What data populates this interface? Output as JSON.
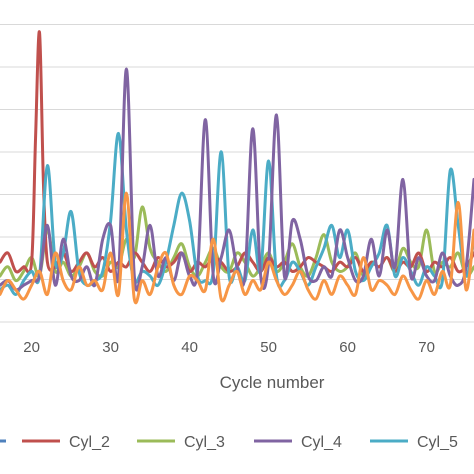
{
  "chart_data": {
    "type": "line",
    "xlabel": "Cycle number",
    "ylabel": "",
    "xlim": [
      16,
      76
    ],
    "x_ticks": [
      20,
      30,
      40,
      50,
      60,
      70
    ],
    "ylim": [
      0,
      7
    ],
    "grid": true,
    "legend_position": "bottom",
    "series": [
      {
        "name": "Cyl_2",
        "color": "#c0504d",
        "x": [
          16,
          17,
          18,
          19,
          20,
          20.5,
          21,
          21.5,
          22,
          23,
          24,
          25,
          26,
          27,
          28,
          29,
          30,
          31,
          32,
          33,
          34,
          35,
          36,
          37,
          38,
          39,
          40,
          41,
          42,
          43,
          44,
          45,
          46,
          47,
          48,
          49,
          50,
          51,
          52,
          53,
          54,
          55,
          56,
          57,
          58,
          59,
          60,
          61,
          62,
          63,
          64,
          65,
          66,
          67,
          68,
          69,
          70,
          71,
          72,
          73,
          74,
          75,
          76
        ],
        "y": [
          1.3,
          1.5,
          1.1,
          1.2,
          1.3,
          4.0,
          6.3,
          3.0,
          1.3,
          1.2,
          1.5,
          1.1,
          1.3,
          1.5,
          1.2,
          1.4,
          1.1,
          1.3,
          1.2,
          1.5,
          1.3,
          1.1,
          1.4,
          1.2,
          1.3,
          1.5,
          1.1,
          1.3,
          1.2,
          1.4,
          1.3,
          1.1,
          1.2,
          1.5,
          1.3,
          1.1,
          1.4,
          1.2,
          1.3,
          1.1,
          1.2,
          1.4,
          1.3,
          1.2,
          1.1,
          1.3,
          1.2,
          1.4,
          1.1,
          1.3,
          1.2,
          1.4,
          1.1,
          1.3,
          1.2,
          1.5,
          1.1,
          1.3,
          1.2,
          1.4,
          1.1,
          1.2,
          1.5
        ]
      },
      {
        "name": "Cyl_3",
        "color": "#9bbb59",
        "x": [
          16,
          17,
          18,
          19,
          20,
          21,
          22,
          23,
          24,
          25,
          26,
          27,
          28,
          29,
          30,
          31,
          32,
          33,
          34,
          35,
          36,
          37,
          38,
          39,
          40,
          41,
          42,
          43,
          44,
          45,
          46,
          47,
          48,
          49,
          50,
          51,
          52,
          53,
          54,
          55,
          56,
          57,
          58,
          59,
          60,
          61,
          62,
          63,
          64,
          65,
          66,
          67,
          68,
          69,
          70,
          71,
          72,
          73,
          74,
          75,
          76
        ],
        "y": [
          1.0,
          1.2,
          0.9,
          1.1,
          1.4,
          1.0,
          2.0,
          1.1,
          1.3,
          1.0,
          1.2,
          1.5,
          1.1,
          1.0,
          1.3,
          1.2,
          1.8,
          1.4,
          2.5,
          1.6,
          1.3,
          1.1,
          1.4,
          1.7,
          1.2,
          1.0,
          1.3,
          1.6,
          1.2,
          1.1,
          1.5,
          1.3,
          1.0,
          1.2,
          1.5,
          1.1,
          1.3,
          1.7,
          1.2,
          1.0,
          1.4,
          1.9,
          1.3,
          1.1,
          1.2,
          1.5,
          1.0,
          1.3,
          1.2,
          1.4,
          1.1,
          1.6,
          1.3,
          1.2,
          2.0,
          1.1,
          1.3,
          1.2,
          1.5,
          1.0,
          1.2
        ]
      },
      {
        "name": "Cyl_4",
        "color": "#8064a2",
        "x": [
          16,
          17,
          18,
          19,
          20,
          21,
          22,
          23,
          24,
          25,
          26,
          27,
          28,
          29,
          30,
          31,
          32,
          33,
          34,
          35,
          36,
          37,
          38,
          39,
          40,
          41,
          42,
          43,
          44,
          45,
          46,
          47,
          48,
          49,
          50,
          51,
          52,
          53,
          54,
          55,
          56,
          57,
          58,
          59,
          60,
          61,
          62,
          63,
          64,
          65,
          66,
          67,
          68,
          69,
          70,
          71,
          72,
          73,
          74,
          75,
          76
        ],
        "y": [
          0.8,
          0.9,
          0.7,
          0.8,
          0.9,
          1.0,
          2.1,
          0.8,
          1.8,
          1.0,
          0.9,
          1.2,
          0.8,
          1.8,
          2.1,
          1.0,
          5.5,
          1.0,
          1.2,
          2.1,
          1.0,
          1.4,
          0.9,
          1.5,
          1.0,
          1.1,
          4.4,
          1.0,
          1.4,
          2.0,
          1.2,
          1.0,
          4.2,
          1.0,
          1.3,
          4.5,
          1.0,
          2.2,
          1.8,
          1.0,
          0.9,
          1.2,
          1.0,
          2.0,
          1.4,
          0.9,
          1.0,
          1.8,
          1.0,
          2.0,
          1.2,
          3.1,
          1.0,
          1.4,
          1.0,
          0.9,
          1.5,
          1.0,
          0.8,
          1.2,
          3.1
        ]
      },
      {
        "name": "Cyl_5",
        "color": "#4bacc6",
        "x": [
          16,
          17,
          18,
          19,
          20,
          21,
          22,
          23,
          24,
          25,
          26,
          27,
          28,
          29,
          30,
          31,
          32,
          33,
          34,
          35,
          36,
          37,
          38,
          39,
          40,
          41,
          42,
          43,
          44,
          45,
          46,
          47,
          48,
          49,
          50,
          51,
          52,
          53,
          54,
          55,
          56,
          57,
          58,
          59,
          60,
          61,
          62,
          63,
          64,
          65,
          66,
          67,
          68,
          69,
          70,
          71,
          72,
          73,
          74,
          75,
          76
        ],
        "y": [
          0.7,
          0.8,
          0.6,
          0.9,
          1.1,
          1.0,
          3.4,
          1.3,
          1.5,
          2.4,
          1.1,
          0.8,
          0.9,
          1.1,
          2.2,
          4.1,
          2.0,
          0.9,
          1.1,
          1.0,
          0.8,
          1.3,
          2.1,
          2.8,
          2.2,
          1.0,
          0.9,
          1.1,
          3.7,
          1.0,
          1.2,
          0.9,
          2.0,
          1.1,
          3.5,
          1.0,
          0.9,
          1.3,
          1.1,
          0.8,
          1.2,
          1.6,
          2.1,
          1.4,
          2.0,
          1.1,
          0.9,
          1.2,
          1.5,
          2.1,
          1.0,
          1.4,
          1.1,
          0.8,
          1.2,
          1.0,
          0.9,
          3.3,
          2.1,
          1.0,
          1.8
        ]
      },
      {
        "name": "",
        "color": "#f79646",
        "x": [
          16,
          17,
          18,
          19,
          20,
          21,
          22,
          23,
          24,
          25,
          26,
          27,
          28,
          29,
          30,
          31,
          32,
          33,
          34,
          35,
          36,
          37,
          38,
          39,
          40,
          41,
          42,
          43,
          44,
          45,
          46,
          47,
          48,
          49,
          50,
          51,
          52,
          53,
          54,
          55,
          56,
          57,
          58,
          59,
          60,
          61,
          62,
          63,
          64,
          65,
          66,
          67,
          68,
          69,
          70,
          71,
          72,
          73,
          74,
          75,
          76
        ],
        "y": [
          0.6,
          0.9,
          0.7,
          0.5,
          0.8,
          1.1,
          0.6,
          1.5,
          0.9,
          0.7,
          1.2,
          0.8,
          0.9,
          0.7,
          1.5,
          0.6,
          2.8,
          0.5,
          0.9,
          0.6,
          1.2,
          1.5,
          0.8,
          0.6,
          1.0,
          0.9,
          0.7,
          1.8,
          0.5,
          0.8,
          1.1,
          0.6,
          0.9,
          0.7,
          1.3,
          0.9,
          0.6,
          0.8,
          1.1,
          0.7,
          0.5,
          0.9,
          0.6,
          1.0,
          0.8,
          0.6,
          1.4,
          0.7,
          0.9,
          0.8,
          0.6,
          1.0,
          0.7,
          0.5,
          0.9,
          0.6,
          1.1,
          0.8,
          2.6,
          0.7,
          2.0
        ]
      }
    ],
    "legend": [
      {
        "name": "Cyl_2",
        "color": "#c0504d"
      },
      {
        "name": "Cyl_3",
        "color": "#9bbb59"
      },
      {
        "name": "Cyl_4",
        "color": "#8064a2"
      },
      {
        "name": "Cyl_5",
        "color": "#4bacc6"
      }
    ]
  }
}
